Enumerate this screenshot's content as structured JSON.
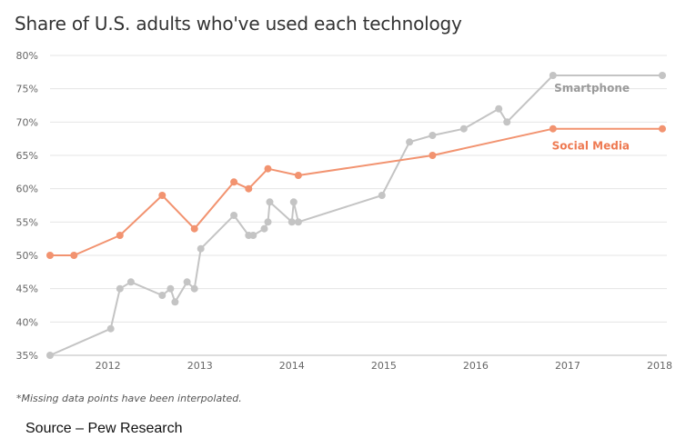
{
  "chart_data": {
    "type": "line",
    "title": "Share of U.S. adults who've used each technology",
    "xlabel": "",
    "ylabel": "",
    "xlim": [
      2011.37,
      2018.0
    ],
    "ylim": [
      35,
      80
    ],
    "x_ticks": [
      2012,
      2013,
      2014,
      2015,
      2016,
      2017,
      2018
    ],
    "x_tick_labels": [
      "2012",
      "2013",
      "2014",
      "2015",
      "2016",
      "2017",
      "2018"
    ],
    "y_ticks": [
      35,
      40,
      45,
      50,
      55,
      60,
      65,
      70,
      75,
      80
    ],
    "y_tick_labels": [
      "35%",
      "40%",
      "45%",
      "50%",
      "55%",
      "60%",
      "65%",
      "70%",
      "75%",
      "80%"
    ],
    "grid": "horizontal",
    "legend": "inline labels",
    "series": [
      {
        "name": "Smartphone",
        "color": "#c4c4c4",
        "points": [
          [
            2011.37,
            35
          ],
          [
            2012.03,
            39
          ],
          [
            2012.13,
            45
          ],
          [
            2012.25,
            46
          ],
          [
            2012.59,
            44
          ],
          [
            2012.68,
            45
          ],
          [
            2012.73,
            43
          ],
          [
            2012.86,
            46
          ],
          [
            2012.94,
            45
          ],
          [
            2013.01,
            51
          ],
          [
            2013.37,
            56
          ],
          [
            2013.53,
            53
          ],
          [
            2013.58,
            53
          ],
          [
            2013.7,
            54
          ],
          [
            2013.74,
            55
          ],
          [
            2013.76,
            58
          ],
          [
            2014.0,
            55
          ],
          [
            2014.02,
            58
          ],
          [
            2014.07,
            55
          ],
          [
            2014.98,
            59
          ],
          [
            2015.28,
            67
          ],
          [
            2015.53,
            68
          ],
          [
            2015.87,
            69
          ],
          [
            2016.25,
            72
          ],
          [
            2016.34,
            70
          ],
          [
            2016.84,
            77
          ],
          [
            2018.03,
            77
          ]
        ]
      },
      {
        "name": "Social Media",
        "color": "#f29370",
        "points": [
          [
            2011.37,
            50
          ],
          [
            2011.63,
            50
          ],
          [
            2012.13,
            53
          ],
          [
            2012.59,
            59
          ],
          [
            2012.94,
            54
          ],
          [
            2013.37,
            61
          ],
          [
            2013.53,
            60
          ],
          [
            2013.74,
            63
          ],
          [
            2014.07,
            62
          ],
          [
            2015.53,
            65
          ],
          [
            2016.84,
            69
          ],
          [
            2018.03,
            69
          ]
        ]
      }
    ],
    "footnote": "*Missing data points have been interpolated."
  },
  "source": "Source – Pew Research"
}
